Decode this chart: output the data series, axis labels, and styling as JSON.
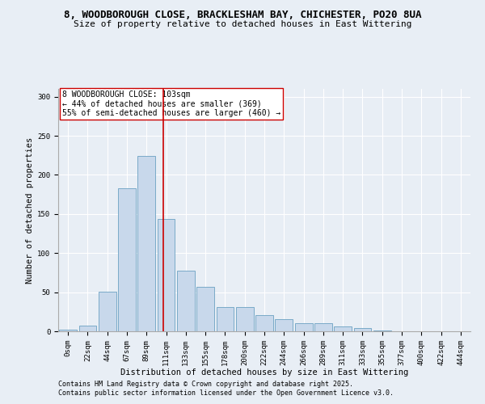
{
  "title_line1": "8, WOODBOROUGH CLOSE, BRACKLESHAM BAY, CHICHESTER, PO20 8UA",
  "title_line2": "Size of property relative to detached houses in East Wittering",
  "xlabel": "Distribution of detached houses by size in East Wittering",
  "ylabel": "Number of detached properties",
  "bar_color": "#c8d8eb",
  "bar_edge_color": "#7aaac8",
  "background_color": "#e8eef5",
  "grid_color": "#ffffff",
  "categories": [
    "0sqm",
    "22sqm",
    "44sqm",
    "67sqm",
    "89sqm",
    "111sqm",
    "133sqm",
    "155sqm",
    "178sqm",
    "200sqm",
    "222sqm",
    "244sqm",
    "266sqm",
    "289sqm",
    "311sqm",
    "333sqm",
    "355sqm",
    "377sqm",
    "400sqm",
    "422sqm",
    "444sqm"
  ],
  "values": [
    2,
    7,
    51,
    183,
    224,
    144,
    77,
    57,
    31,
    31,
    21,
    15,
    10,
    10,
    6,
    4,
    1,
    0,
    0,
    0,
    0
  ],
  "vline_x": 4.86,
  "vline_color": "#cc0000",
  "annotation_text": "8 WOODBOROUGH CLOSE: 103sqm\n← 44% of detached houses are smaller (369)\n55% of semi-detached houses are larger (460) →",
  "annotation_box_color": "#ffffff",
  "annotation_border_color": "#cc0000",
  "ylim": [
    0,
    310
  ],
  "yticks": [
    0,
    50,
    100,
    150,
    200,
    250,
    300
  ],
  "footer_line1": "Contains HM Land Registry data © Crown copyright and database right 2025.",
  "footer_line2": "Contains public sector information licensed under the Open Government Licence v3.0.",
  "title_fontsize": 9,
  "subtitle_fontsize": 8,
  "axis_label_fontsize": 7.5,
  "tick_fontsize": 6.5,
  "annotation_fontsize": 7,
  "footer_fontsize": 6
}
